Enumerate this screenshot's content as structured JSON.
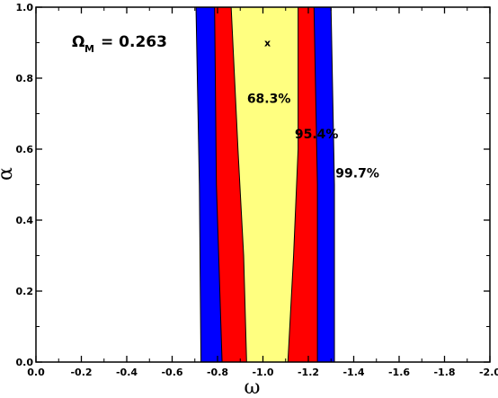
{
  "chart_data": {
    "type": "contour",
    "xlabel": "ω",
    "ylabel": "α",
    "xlim": [
      0.0,
      -2.0
    ],
    "ylim": [
      0.0,
      1.0
    ],
    "x_ticks": [
      "0.0",
      "-0.2",
      "-0.4",
      "-0.6",
      "-0.8",
      "-1.0",
      "-1.2",
      "-1.4",
      "-1.6",
      "-1.8",
      "-2.0"
    ],
    "y_ticks": [
      "0.0",
      "0.2",
      "0.4",
      "0.6",
      "0.8",
      "1.0"
    ],
    "annotation": {
      "symbol": "Ω",
      "subscript": "M",
      "text": "= 0.263"
    },
    "best_fit": {
      "x": -1.02,
      "y": 0.9,
      "marker": "x"
    },
    "contours": [
      {
        "name": "99.7%",
        "color": "#0000ff",
        "left": [
          {
            "y": 0.0,
            "x": -0.727
          },
          {
            "y": 0.5,
            "x": -0.72
          },
          {
            "y": 1.0,
            "x": -0.705
          }
        ],
        "right": [
          {
            "y": 0.0,
            "x": -1.315
          },
          {
            "y": 0.5,
            "x": -1.315
          },
          {
            "y": 1.0,
            "x": -1.3
          }
        ],
        "label_pos": {
          "x": -1.32,
          "y": 0.52
        }
      },
      {
        "name": "95.4%",
        "color": "#ff0000",
        "left": [
          {
            "y": 0.0,
            "x": -0.82
          },
          {
            "y": 0.5,
            "x": -0.795
          },
          {
            "y": 1.0,
            "x": -0.787
          }
        ],
        "right": [
          {
            "y": 0.0,
            "x": -1.24
          },
          {
            "y": 0.5,
            "x": -1.24
          },
          {
            "y": 1.0,
            "x": -1.225
          }
        ],
        "label_pos": {
          "x": -1.14,
          "y": 0.63
        }
      },
      {
        "name": "68.3%",
        "color": "#ffff80",
        "left": [
          {
            "y": 0.0,
            "x": -0.928
          },
          {
            "y": 0.3,
            "x": -0.915
          },
          {
            "y": 0.6,
            "x": -0.89
          },
          {
            "y": 1.0,
            "x": -0.86
          }
        ],
        "right": [
          {
            "y": 0.0,
            "x": -1.11
          },
          {
            "y": 0.3,
            "x": -1.135
          },
          {
            "y": 0.6,
            "x": -1.155
          },
          {
            "y": 1.0,
            "x": -1.155
          }
        ],
        "label_pos": {
          "x": -0.93,
          "y": 0.73
        }
      }
    ],
    "grid": false,
    "legend": "none"
  }
}
